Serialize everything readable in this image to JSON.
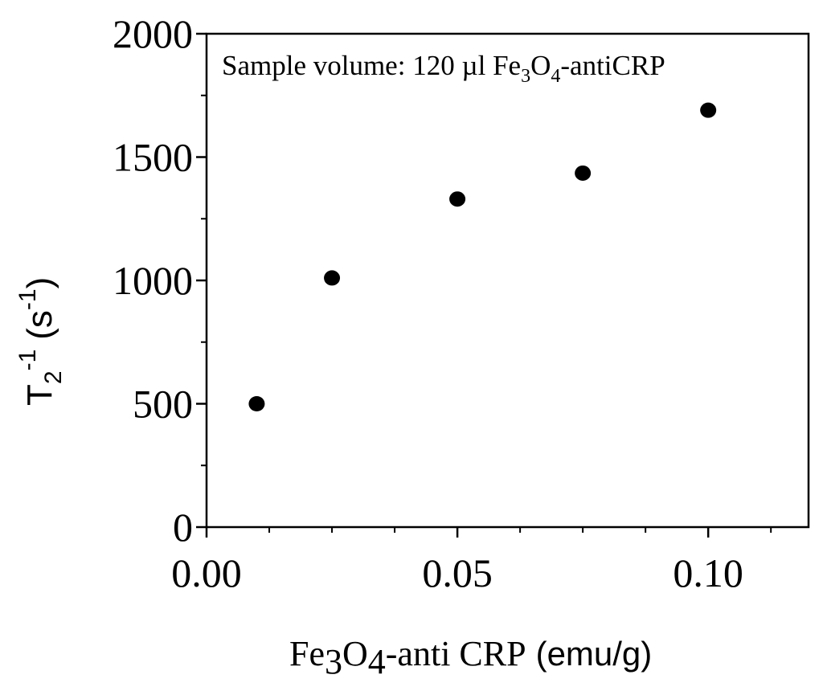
{
  "chart_data": {
    "type": "scatter",
    "annotation": {
      "prefix": "Sample volume: 120 µl Fe",
      "sub1": "3",
      "mid": "O",
      "sub2": "4",
      "suffix": "-antiCRP"
    },
    "xlabel": {
      "part1": "Fe",
      "sub1": "3",
      "part2": "O",
      "sub2": "4",
      "part3": "-anti CRP",
      "unit": "(emu/g)"
    },
    "ylabel": {
      "base": "T",
      "sub": "2",
      "sup": "-1",
      "unit_open": "(s",
      "unit_sup": "-1",
      "unit_close": ")"
    },
    "xlim": [
      0,
      0.12
    ],
    "ylim": [
      0,
      2000
    ],
    "x_major_ticks": [
      0.0,
      0.05,
      0.1
    ],
    "x_tick_labels": [
      "0.00",
      "0.05",
      "0.10"
    ],
    "x_minor_ticks": [
      0.0125,
      0.025,
      0.0375,
      0.0625,
      0.075,
      0.0875,
      0.1125
    ],
    "y_major_ticks": [
      0,
      500,
      1000,
      1500,
      2000
    ],
    "y_tick_labels": [
      "0",
      "500",
      "1000",
      "1500",
      "2000"
    ],
    "y_minor_ticks": [
      250,
      750,
      1250,
      1750
    ],
    "grid": false,
    "marker_color": "#000000",
    "x": [
      0.01,
      0.025,
      0.05,
      0.075,
      0.1
    ],
    "y": [
      500,
      1010,
      1330,
      1435,
      1690
    ]
  }
}
